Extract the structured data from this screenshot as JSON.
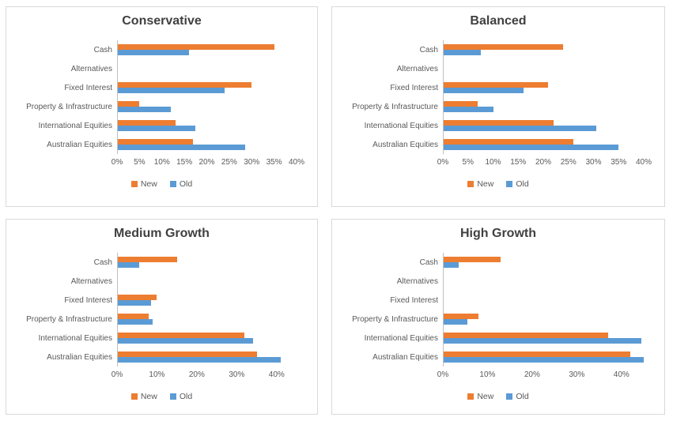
{
  "colors": {
    "new_series": "#ED7D31",
    "old_series": "#5B9BD5",
    "title_text": "#404040",
    "label_text": "#595959",
    "panel_border": "#D9D9D9",
    "axis_line": "#BFBFBF"
  },
  "legend": {
    "new_label": "New",
    "old_label": "Old"
  },
  "chart_data": [
    {
      "type": "bar",
      "orientation": "horizontal",
      "title": "Conservative",
      "categories": [
        "Cash",
        "Alternatives",
        "Fixed Interest",
        "Property & Infrastructure",
        "International Equities",
        "Australian Equities"
      ],
      "series": [
        {
          "name": "New",
          "values": [
            35,
            0,
            30,
            5,
            13,
            17
          ]
        },
        {
          "name": "Old",
          "values": [
            16,
            0,
            24,
            12,
            17.5,
            28.5
          ]
        }
      ],
      "xlim": [
        0,
        40
      ],
      "ticks": [
        0,
        5,
        10,
        15,
        20,
        25,
        30,
        35,
        40
      ],
      "tick_labels": [
        "0%",
        "5%",
        "10%",
        "15%",
        "20%",
        "25%",
        "30%",
        "35%",
        "40%"
      ],
      "grid": false,
      "legend_position": "bottom"
    },
    {
      "type": "bar",
      "orientation": "horizontal",
      "title": "Balanced",
      "categories": [
        "Cash",
        "Alternatives",
        "Fixed Interest",
        "Property & Infrastructure",
        "International Equities",
        "Australian Equities"
      ],
      "series": [
        {
          "name": "New",
          "values": [
            24,
            0,
            21,
            7,
            22,
            26
          ]
        },
        {
          "name": "Old",
          "values": [
            7.5,
            0,
            16,
            10,
            30.5,
            35
          ]
        }
      ],
      "xlim": [
        0,
        40
      ],
      "ticks": [
        0,
        5,
        10,
        15,
        20,
        25,
        30,
        35,
        40
      ],
      "tick_labels": [
        "0%",
        "5%",
        "10%",
        "15%",
        "20%",
        "25%",
        "30%",
        "35%",
        "40%"
      ],
      "grid": false,
      "legend_position": "bottom"
    },
    {
      "type": "bar",
      "orientation": "horizontal",
      "title": "Medium Growth",
      "categories": [
        "Cash",
        "Alternatives",
        "Fixed Interest",
        "Property & Infrastructure",
        "International Equities",
        "Australian Equities"
      ],
      "series": [
        {
          "name": "New",
          "values": [
            15,
            0,
            10,
            8,
            32,
            35
          ]
        },
        {
          "name": "Old",
          "values": [
            5.5,
            0,
            8.5,
            9,
            34,
            41
          ]
        }
      ],
      "xlim": [
        0,
        45
      ],
      "ticks": [
        0,
        10,
        20,
        30,
        40
      ],
      "tick_labels": [
        "0%",
        "10%",
        "20%",
        "30%",
        "40%"
      ],
      "grid": false,
      "legend_position": "bottom"
    },
    {
      "type": "bar",
      "orientation": "horizontal",
      "title": "High Growth",
      "categories": [
        "Cash",
        "Alternatives",
        "Fixed Interest",
        "Property & Infrastructure",
        "International Equities",
        "Australian Equities"
      ],
      "series": [
        {
          "name": "New",
          "values": [
            13,
            0,
            0,
            8,
            37,
            42
          ]
        },
        {
          "name": "Old",
          "values": [
            3.5,
            0,
            0,
            5.5,
            44.5,
            45
          ]
        }
      ],
      "xlim": [
        0,
        45
      ],
      "ticks": [
        0,
        10,
        20,
        30,
        40
      ],
      "tick_labels": [
        "0%",
        "10%",
        "20%",
        "30%",
        "40%"
      ],
      "grid": false,
      "legend_position": "bottom"
    }
  ]
}
